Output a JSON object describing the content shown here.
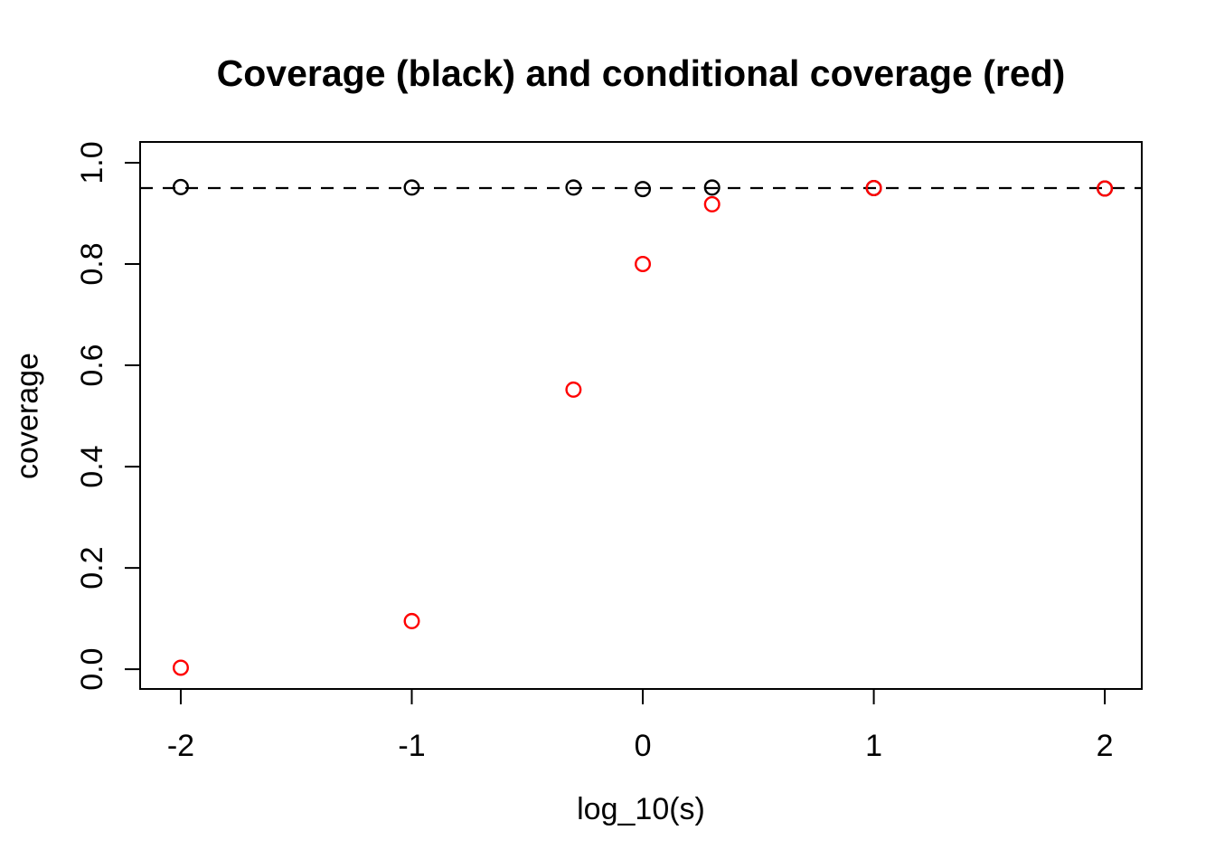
{
  "chart_data": {
    "type": "scatter",
    "title": "Coverage (black) and conditional coverage (red)",
    "xlabel": "log_10(s)",
    "ylabel": "coverage",
    "xlim": [
      -2.176,
      2.16
    ],
    "ylim": [
      -0.039,
      1.041
    ],
    "grid": false,
    "legend_position": "none",
    "x_ticks": {
      "values": [
        -2,
        -1,
        0,
        1,
        2
      ],
      "labels": [
        "-2",
        "-1",
        "0",
        "1",
        "2"
      ]
    },
    "y_ticks": {
      "values": [
        0.0,
        0.2,
        0.4,
        0.6,
        0.8,
        1.0
      ],
      "labels": [
        "0.0",
        "0.2",
        "0.4",
        "0.6",
        "0.8",
        "1.0"
      ]
    },
    "reference_line": {
      "y": 0.95,
      "style": "dashed",
      "color": "#000000"
    },
    "marker": "open-circle",
    "series": [
      {
        "name": "coverage",
        "color": "#000000",
        "x": [
          -2,
          -1,
          -0.3,
          0,
          0.3,
          1,
          2
        ],
        "y": [
          0.952,
          0.951,
          0.951,
          0.948,
          0.951,
          0.95,
          0.949
        ]
      },
      {
        "name": "conditional coverage",
        "color": "#FF0000",
        "x": [
          -2,
          -1,
          -0.3,
          0,
          0.3,
          1,
          2
        ],
        "y": [
          0.003,
          0.095,
          0.552,
          0.8,
          0.918,
          0.95,
          0.949
        ]
      }
    ]
  }
}
